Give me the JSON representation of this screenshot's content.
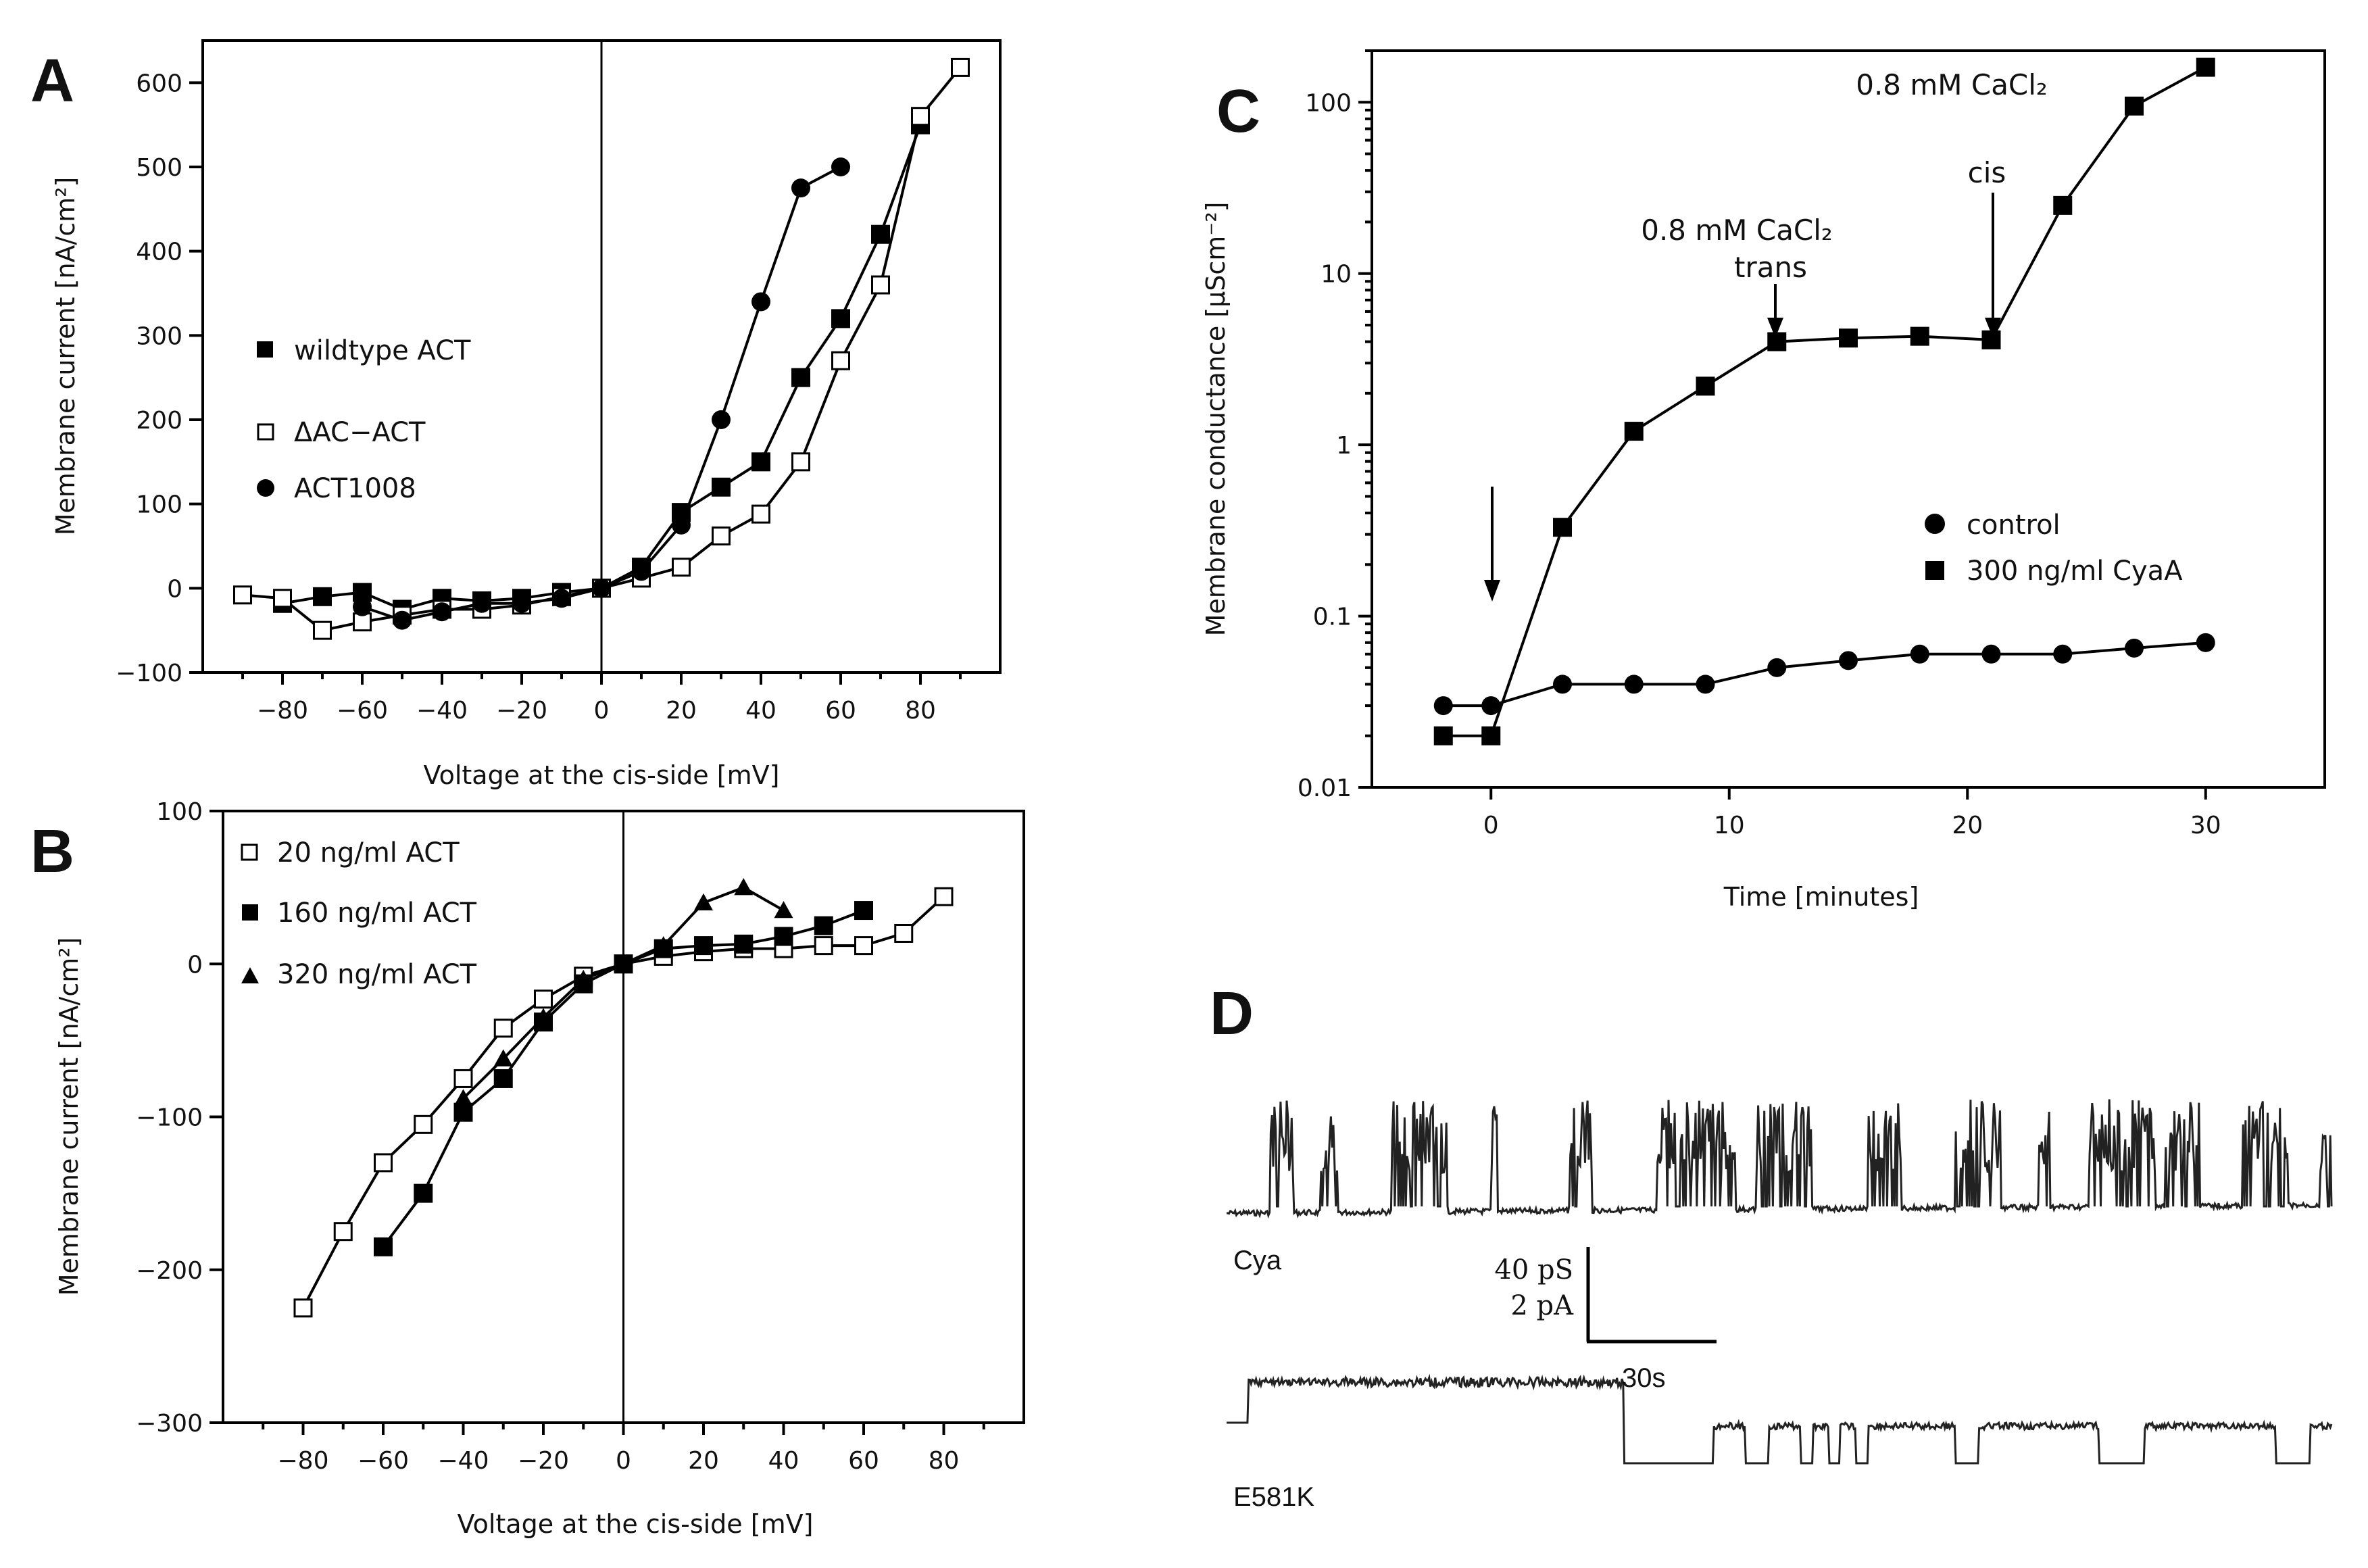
{
  "chart_data": [
    {
      "panel": "A",
      "type": "line",
      "xlabel": "Voltage at the cis-side [mV]",
      "ylabel": "Membrane current [nA/cm²]",
      "xlim": [
        -100,
        100
      ],
      "ylim": [
        -100,
        650
      ],
      "xticks": [
        -80,
        -60,
        -40,
        -20,
        0,
        20,
        40,
        60,
        80
      ],
      "yticks": [
        -100,
        0,
        100,
        200,
        300,
        400,
        500,
        600
      ],
      "series": [
        {
          "name": "wildtype ACT",
          "marker": "square-filled",
          "x": [
            -80,
            -70,
            -60,
            -50,
            -40,
            -30,
            -20,
            -10,
            0,
            10,
            20,
            30,
            40,
            50,
            60,
            70,
            80
          ],
          "y": [
            -18,
            -10,
            -5,
            -25,
            -12,
            -15,
            -12,
            -5,
            0,
            25,
            90,
            120,
            150,
            250,
            320,
            420,
            550
          ]
        },
        {
          "name": "ΔAC-ACT",
          "marker": "square-open",
          "x": [
            -90,
            -80,
            -70,
            -60,
            -50,
            -40,
            -30,
            -20,
            -10,
            0,
            10,
            20,
            30,
            40,
            50,
            60,
            70,
            80,
            90
          ],
          "y": [
            -8,
            -12,
            -50,
            -40,
            -32,
            -25,
            -25,
            -20,
            -10,
            0,
            12,
            25,
            62,
            88,
            150,
            270,
            360,
            560,
            618
          ]
        },
        {
          "name": "ACT1008",
          "marker": "circle-filled",
          "x": [
            -60,
            -50,
            -40,
            -30,
            -20,
            -10,
            0,
            10,
            20,
            30,
            40,
            50,
            60
          ],
          "y": [
            -22,
            -38,
            -28,
            -18,
            -18,
            -12,
            0,
            20,
            75,
            200,
            340,
            475,
            500
          ]
        }
      ]
    },
    {
      "panel": "B",
      "type": "line",
      "xlabel": "Voltage at the cis-side [mV]",
      "ylabel": "Membrane current [nA/cm²]",
      "xlim": [
        -100,
        100
      ],
      "ylim": [
        -300,
        100
      ],
      "xticks": [
        -80,
        -60,
        -40,
        -20,
        0,
        20,
        40,
        60,
        80
      ],
      "yticks": [
        -300,
        -200,
        -100,
        0,
        100
      ],
      "series": [
        {
          "name": "20 ng/ml ACT",
          "marker": "square-open",
          "x": [
            -80,
            -70,
            -60,
            -50,
            -40,
            -30,
            -20,
            -10,
            0,
            10,
            20,
            30,
            40,
            50,
            60,
            70,
            80
          ],
          "y": [
            -225,
            -175,
            -130,
            -105,
            -75,
            -42,
            -23,
            -8,
            0,
            5,
            8,
            10,
            10,
            12,
            12,
            20,
            44
          ]
        },
        {
          "name": "160 ng/ml ACT",
          "marker": "square-filled",
          "x": [
            -60,
            -50,
            -40,
            -30,
            -20,
            -10,
            0,
            10,
            20,
            30,
            40,
            50,
            60
          ],
          "y": [
            -185,
            -150,
            -97,
            -75,
            -38,
            -13,
            0,
            10,
            12,
            13,
            18,
            25,
            35
          ]
        },
        {
          "name": "320 ng/ml ACT",
          "marker": "triangle-filled",
          "x": [
            -40,
            -30,
            -20,
            -10,
            0,
            10,
            20,
            30,
            40
          ],
          "y": [
            -88,
            -62,
            -35,
            -10,
            0,
            12,
            40,
            50,
            35
          ]
        }
      ]
    },
    {
      "panel": "C",
      "type": "line",
      "yscale": "log",
      "xlabel": "Time [minutes]",
      "ylabel": "Membrane conductance [μScm⁻²]",
      "xlim": [
        -5,
        35
      ],
      "ylim": [
        0.01,
        200
      ],
      "xticks": [
        0,
        10,
        20,
        30
      ],
      "yticks": [
        0.01,
        0.1,
        1,
        10,
        100
      ],
      "ytick_labels": [
        "0.01",
        "0.1",
        "1",
        "10",
        "100"
      ],
      "series": [
        {
          "name": "control",
          "marker": "circle-filled",
          "x": [
            -2,
            0,
            3,
            6,
            9,
            12,
            15,
            18,
            21,
            24,
            27,
            30
          ],
          "y": [
            0.03,
            0.03,
            0.04,
            0.04,
            0.04,
            0.05,
            0.055,
            0.06,
            0.06,
            0.06,
            0.065,
            0.07
          ]
        },
        {
          "name": "300 ng/ml CyaA",
          "marker": "square-filled",
          "x": [
            -2,
            0,
            3,
            6,
            9,
            12,
            15,
            18,
            21,
            24,
            27,
            30
          ],
          "y": [
            0.02,
            0.02,
            0.33,
            1.2,
            2.2,
            4.0,
            4.2,
            4.3,
            4.1,
            25,
            95,
            160
          ]
        }
      ],
      "annotations": [
        {
          "label": "0.8 mM CaCl₂ trans",
          "x": 12
        },
        {
          "label": "0.8 mM CaCl₂ cis",
          "x": 21
        },
        {
          "label": "arrow",
          "x": 0
        }
      ]
    },
    {
      "panel": "D",
      "type": "trace",
      "traces": [
        "Cya",
        "E581K"
      ],
      "scalebar": {
        "y1": "40 pS",
        "y2": "2 pA",
        "x": "30s"
      }
    }
  ],
  "panels": {
    "A": {
      "letter": "A",
      "xlabel": "Voltage at the cis-side [mV]",
      "ylabel": "Membrane current [nA/cm²]",
      "xtick_labels": [
        "−80",
        "−60",
        "−40",
        "−20",
        "0",
        "20",
        "40",
        "60",
        "80"
      ],
      "ytick_labels": [
        "−100",
        "0",
        "100",
        "200",
        "300",
        "400",
        "500",
        "600"
      ],
      "legend": [
        "wildtype ACT",
        "ΔAC−ACT",
        "ACT1008"
      ]
    },
    "B": {
      "letter": "B",
      "xlabel": "Voltage at the cis-side [mV]",
      "ylabel": "Membrane current [nA/cm²]",
      "xtick_labels": [
        "−80",
        "−60",
        "−40",
        "−20",
        "0",
        "20",
        "40",
        "60",
        "80"
      ],
      "ytick_labels": [
        "−300",
        "−200",
        "−100",
        "0",
        "100"
      ],
      "legend": [
        "20 ng/ml ACT",
        "160 ng/ml ACT",
        "320 ng/ml ACT"
      ]
    },
    "C": {
      "letter": "C",
      "xlabel": "Time [minutes]",
      "ylabel": "Membrane conductance [μScm⁻²]",
      "xtick_labels": [
        "0",
        "10",
        "20",
        "30"
      ],
      "ytick_labels": [
        "0.01",
        "0.1",
        "1",
        "10",
        "100"
      ],
      "legend": [
        "control",
        "300 ng/ml CyaA"
      ],
      "ann1_line1": "0.8  mM  CaCl₂",
      "ann1_line2": "trans",
      "ann2_line1": "0.8  mM  CaCl₂",
      "ann2_line2": "cis"
    },
    "D": {
      "letter": "D",
      "trace1": "Cya",
      "trace2": "E581K",
      "scale_pS": "40 pS",
      "scale_pA": "2 pA",
      "scale_time": "30s"
    }
  }
}
